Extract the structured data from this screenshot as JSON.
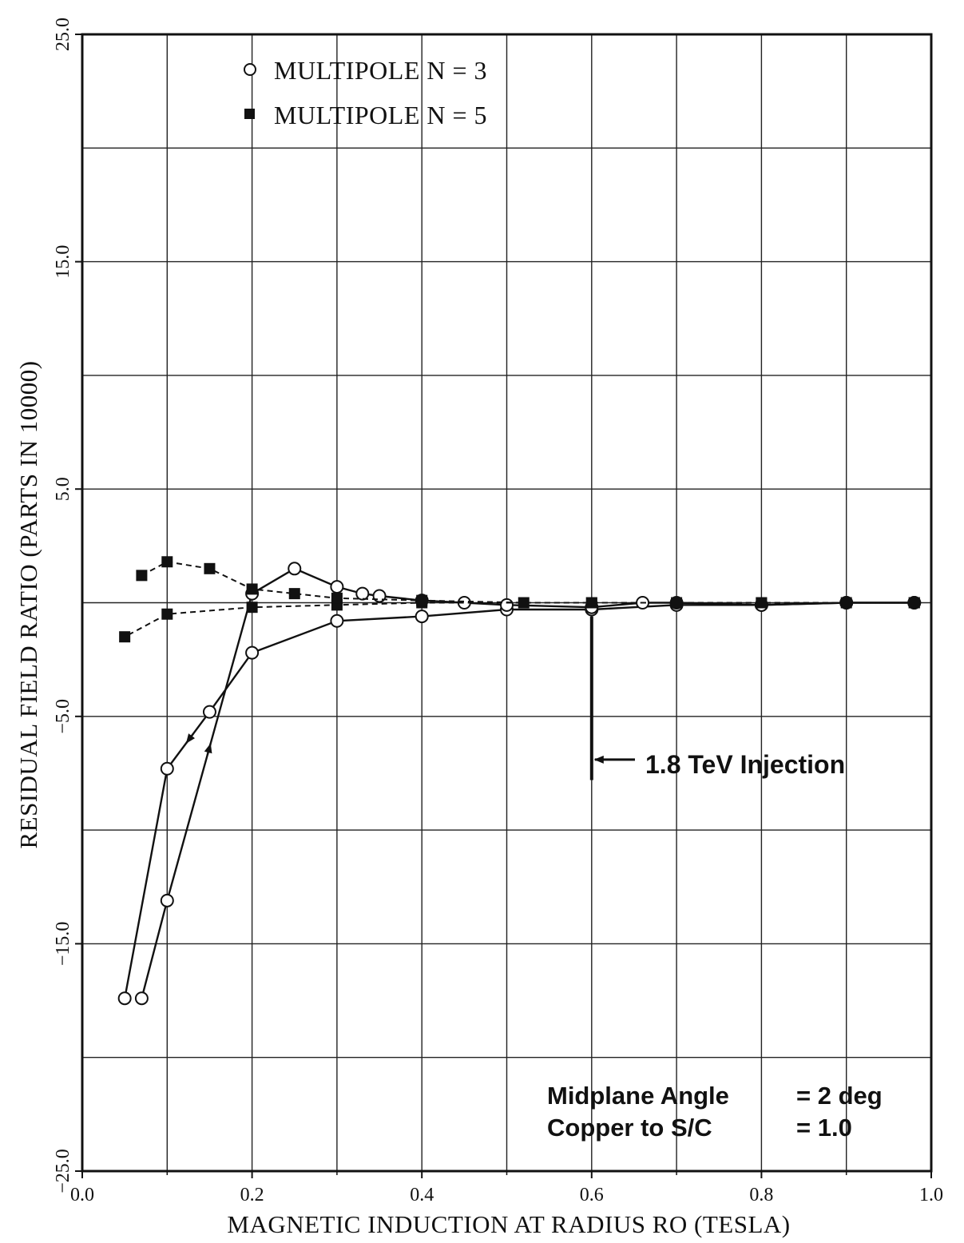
{
  "chart_data": {
    "type": "line",
    "title": "",
    "xlabel": "MAGNETIC INDUCTION AT RADIUS RO (TESLA)",
    "ylabel": "RESIDUAL FIELD RATIO (PARTS IN 10000)",
    "xlim": [
      0.0,
      1.0
    ],
    "ylim": [
      -25.0,
      25.0
    ],
    "x_ticks": [
      0.0,
      0.2,
      0.4,
      0.6,
      0.8,
      1.0
    ],
    "x_tick_labels": [
      "0.0",
      "0.2",
      "0.4",
      "0.6",
      "0.8",
      "1.0"
    ],
    "y_ticks": [
      -25.0,
      -15.0,
      -5.0,
      5.0,
      15.0,
      25.0
    ],
    "y_tick_labels": [
      "−25.0",
      "−15.0",
      "−5.0",
      "5.0",
      "15.0",
      "25.0"
    ],
    "grid": true,
    "legend_position": "top-left",
    "series": [
      {
        "name": "MULTIPOLE N = 3",
        "marker": "open-circle",
        "line": "solid",
        "color": "#111111",
        "branches": [
          {
            "role": "down-ramp",
            "x": [
              0.98,
              0.9,
              0.8,
              0.7,
              0.6,
              0.5,
              0.4,
              0.3,
              0.2,
              0.15,
              0.1,
              0.05
            ],
            "y": [
              0.0,
              0.0,
              -0.1,
              -0.1,
              -0.3,
              -0.3,
              -0.6,
              -0.8,
              -2.2,
              -4.8,
              -7.3,
              -17.4
            ]
          },
          {
            "role": "up-ramp",
            "x": [
              0.07,
              0.1,
              0.2,
              0.25,
              0.3,
              0.33,
              0.35,
              0.4,
              0.45,
              0.5,
              0.6,
              0.66,
              0.7,
              0.8,
              0.9,
              0.98
            ],
            "y": [
              -17.4,
              -13.1,
              0.4,
              1.5,
              0.7,
              0.4,
              0.3,
              0.1,
              0.0,
              -0.1,
              -0.2,
              0.0,
              0.0,
              -0.1,
              0.0,
              0.0
            ]
          }
        ]
      },
      {
        "name": "MULTIPOLE N = 5",
        "marker": "filled-square",
        "line": "dashed",
        "color": "#111111",
        "branches": [
          {
            "role": "down-ramp",
            "x": [
              0.98,
              0.8,
              0.6,
              0.4,
              0.3,
              0.2,
              0.1,
              0.05
            ],
            "y": [
              0.0,
              0.0,
              0.0,
              0.0,
              -0.1,
              -0.2,
              -0.5,
              -1.5
            ]
          },
          {
            "role": "up-ramp",
            "x": [
              0.07,
              0.1,
              0.15,
              0.2,
              0.25,
              0.3,
              0.4,
              0.52,
              0.6,
              0.7,
              0.8,
              0.9,
              0.98
            ],
            "y": [
              1.2,
              1.8,
              1.5,
              0.6,
              0.4,
              0.2,
              0.1,
              0.0,
              0.0,
              0.0,
              0.0,
              0.0,
              0.0
            ]
          }
        ]
      }
    ],
    "annotations": {
      "injection": {
        "label": "1.8 TeV Injection",
        "x": 0.6,
        "y_from": -0.6,
        "y_to": -7.8,
        "arrow_y": -6.9
      },
      "params": [
        {
          "label": "Midplane Angle",
          "value": "= 2 deg"
        },
        {
          "label": "Copper to S/C",
          "value": "= 1.0"
        }
      ]
    }
  }
}
